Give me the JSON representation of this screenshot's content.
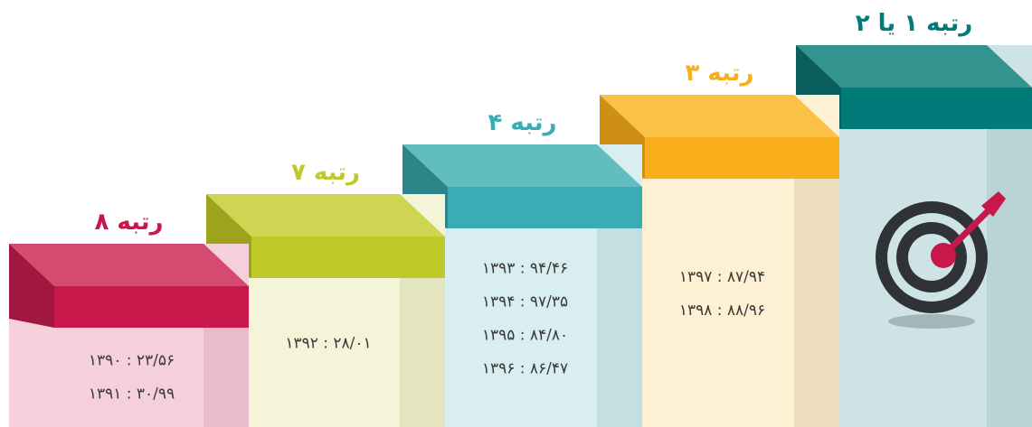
{
  "steps": [
    {
      "label": "رتبه ۸",
      "lines": [
        "۱۳۹۰ : ۲۳/۵۶",
        "۱۳۹۱ : ۳۰/۹۹"
      ]
    },
    {
      "label": "رتبه ۷",
      "lines": [
        "۱۳۹۲ : ۲۸/۰۱"
      ]
    },
    {
      "label": "رتبه ۴",
      "lines": [
        "۱۳۹۳ : ۹۴/۴۶",
        "۱۳۹۴ : ۹۷/۳۵",
        "۱۳۹۵ : ۸۴/۸۰",
        "۱۳۹۶ : ۸۶/۴۷"
      ]
    },
    {
      "label": "رتبه ۳",
      "lines": [
        "۱۳۹۷ : ۸۷/۹۴",
        "۱۳۹۸ : ۸۸/۹۶"
      ]
    },
    {
      "label": "رتبه ۱ یا ۲",
      "lines": []
    }
  ]
}
